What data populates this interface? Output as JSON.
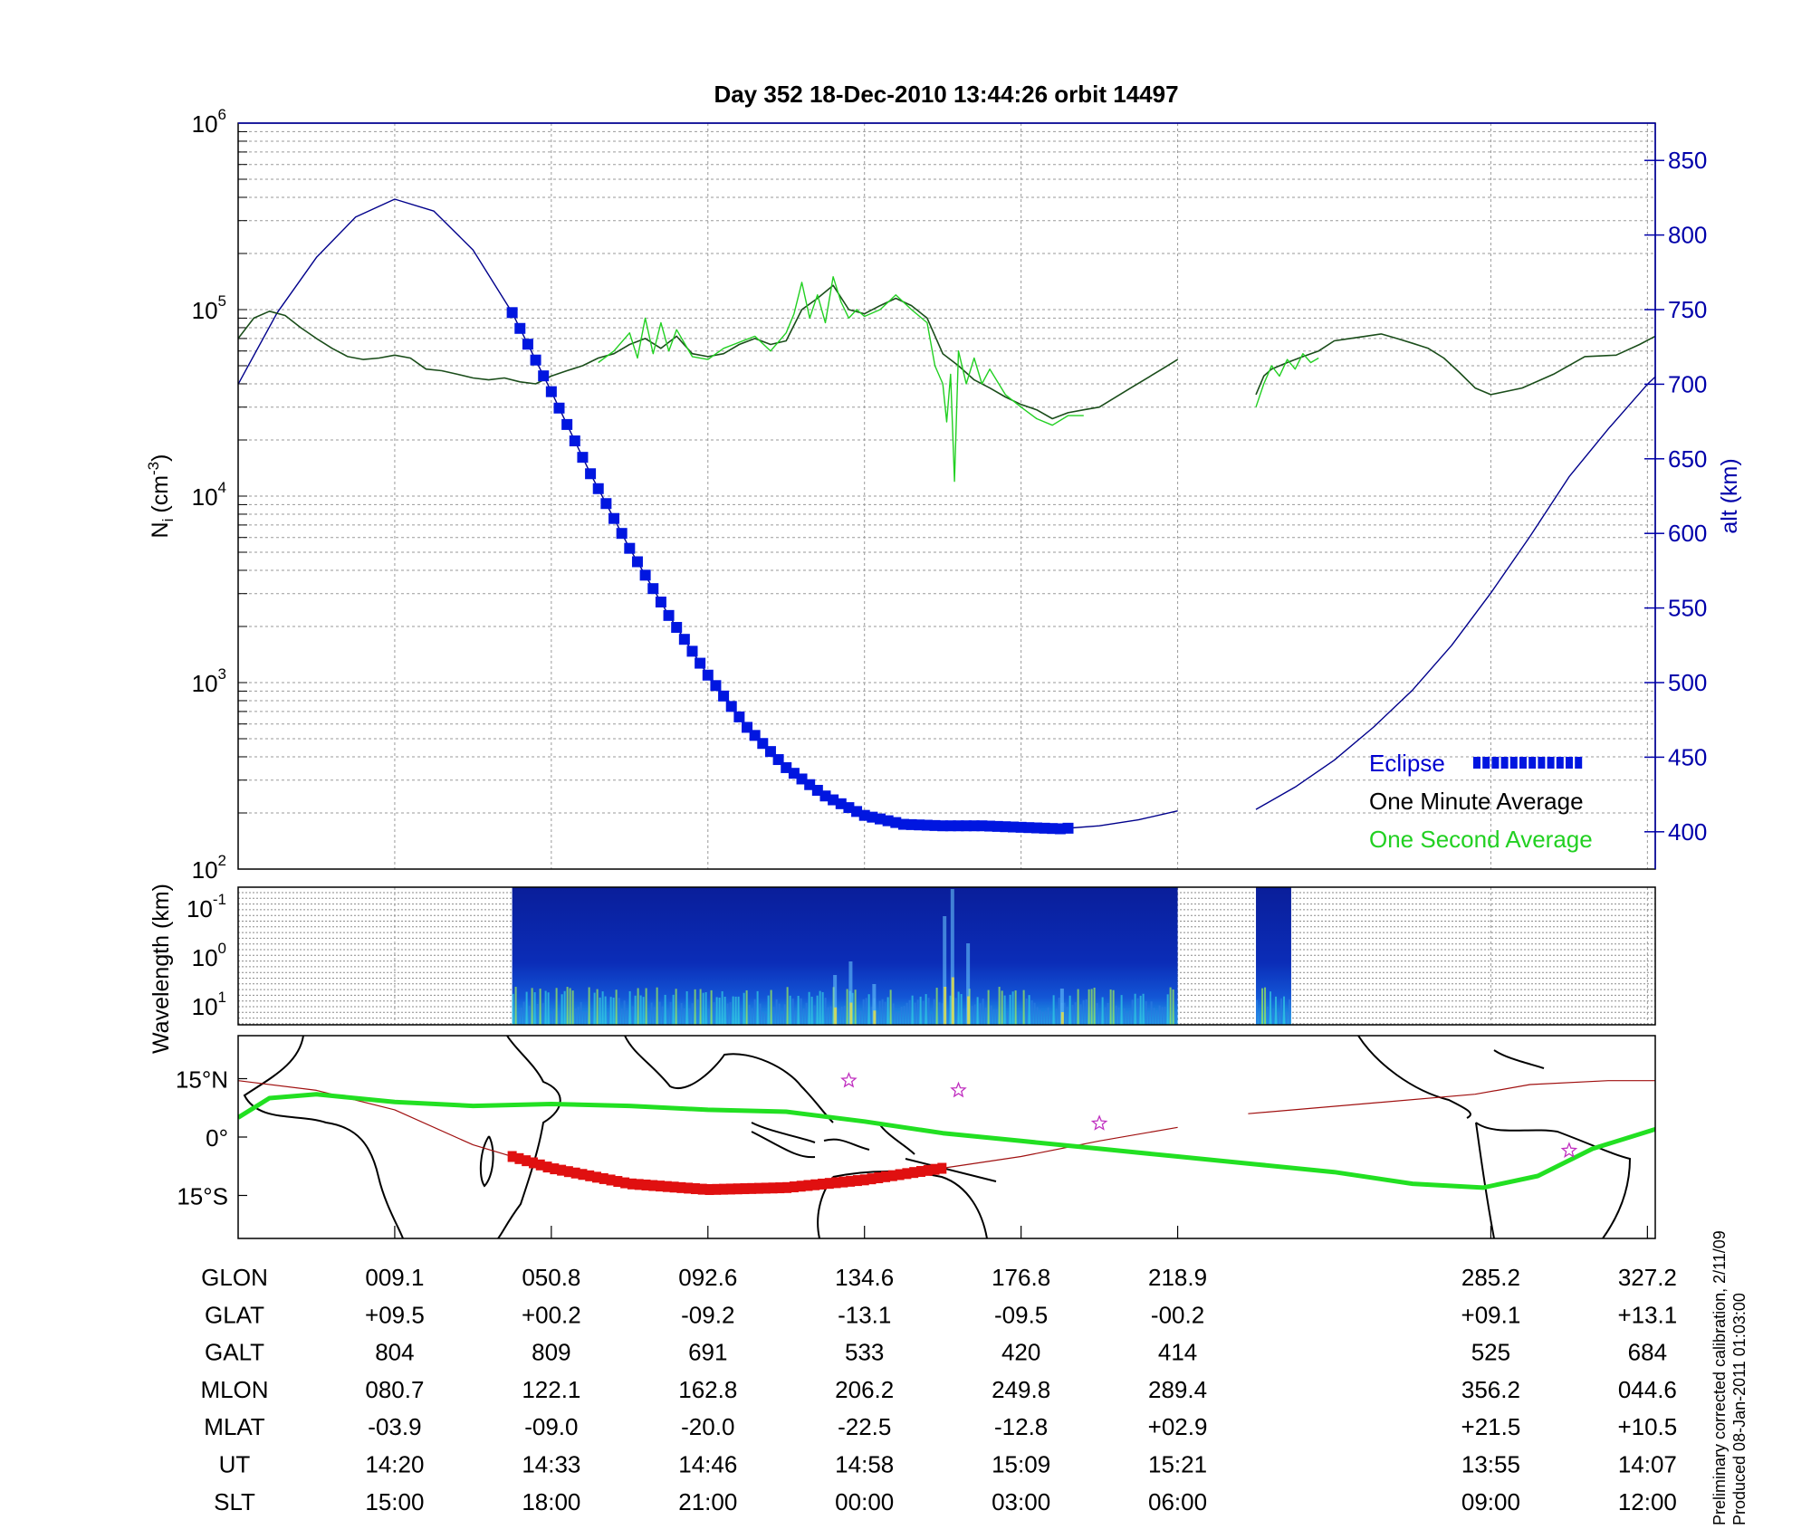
{
  "title": "Day 352  18-Dec-2010 13:44:26   orbit 14497",
  "colors": {
    "eclipse": "#0016e0",
    "minute": "#1a4d1a",
    "second": "#22d022",
    "alt": "#00008b",
    "track": "#22e022",
    "dip": "#a01010",
    "axis": "#0000aa"
  },
  "chart_data": [
    {
      "type": "line",
      "name": "density",
      "ylabel": "N",
      "ylabel_sub": "i",
      "ylabel_unit": "(cm",
      "ylabel_exp": "-3",
      "ylabel_close": ")",
      "y_scale": "log",
      "ylim": [
        100,
        1000000
      ],
      "yticks": [
        {
          "base": "10",
          "exp": "2",
          "v": 100
        },
        {
          "base": "10",
          "exp": "3",
          "v": 1000
        },
        {
          "base": "10",
          "exp": "4",
          "v": 10000
        },
        {
          "base": "10",
          "exp": "5",
          "v": 100000
        },
        {
          "base": "10",
          "exp": "6",
          "v": 1000000
        }
      ],
      "y2label": "alt (km)",
      "y2lim": [
        375,
        875
      ],
      "y2ticks": [
        "400",
        "450",
        "500",
        "550",
        "600",
        "650",
        "700",
        "750",
        "800",
        "850"
      ],
      "legend": {
        "eclipse": "Eclipse",
        "minute": "One Minute Average",
        "second": "One Second Average",
        "position": "bottom-right"
      },
      "minute_segments": [
        [
          [
            0.0,
            70000
          ],
          [
            0.2,
            90000
          ],
          [
            0.4,
            98000
          ],
          [
            0.6,
            93000
          ],
          [
            0.8,
            80000
          ],
          [
            1.0,
            70000
          ],
          [
            1.2,
            62000
          ],
          [
            1.4,
            56000
          ],
          [
            1.6,
            54000
          ],
          [
            1.8,
            55000
          ],
          [
            2.0,
            57000
          ],
          [
            2.2,
            55000
          ],
          [
            2.4,
            48000
          ],
          [
            2.6,
            47000
          ],
          [
            2.8,
            45000
          ],
          [
            3.0,
            43000
          ],
          [
            3.2,
            42000
          ],
          [
            3.4,
            43000
          ],
          [
            3.6,
            41000
          ],
          [
            3.8,
            40000
          ],
          [
            4.0,
            44000
          ],
          [
            4.2,
            47000
          ],
          [
            4.4,
            50000
          ],
          [
            4.6,
            55000
          ],
          [
            4.8,
            58000
          ],
          [
            5.0,
            65000
          ],
          [
            5.2,
            70000
          ],
          [
            5.4,
            62000
          ],
          [
            5.6,
            72000
          ],
          [
            5.8,
            58000
          ],
          [
            6.0,
            56000
          ],
          [
            6.2,
            58000
          ],
          [
            6.4,
            65000
          ],
          [
            6.6,
            70000
          ],
          [
            6.8,
            65000
          ],
          [
            7.0,
            68000
          ],
          [
            7.2,
            100000
          ],
          [
            7.4,
            115000
          ],
          [
            7.6,
            135000
          ],
          [
            7.8,
            100000
          ],
          [
            8.0,
            95000
          ],
          [
            8.2,
            105000
          ],
          [
            8.4,
            115000
          ],
          [
            8.6,
            105000
          ],
          [
            8.8,
            90000
          ],
          [
            9.0,
            58000
          ],
          [
            9.2,
            50000
          ],
          [
            9.4,
            42000
          ],
          [
            9.6,
            38000
          ],
          [
            9.8,
            34000
          ],
          [
            10.0,
            31000
          ],
          [
            10.2,
            29000
          ],
          [
            10.4,
            26000
          ],
          [
            10.6,
            28000
          ],
          [
            10.8,
            29000
          ],
          [
            11.0,
            30000
          ],
          [
            11.4,
            38000
          ],
          [
            11.8,
            48000
          ],
          [
            12.0,
            54000
          ]
        ],
        [
          [
            13.0,
            35000
          ],
          [
            13.1,
            44000
          ],
          [
            13.2,
            48000
          ],
          [
            13.4,
            52000
          ],
          [
            13.6,
            56000
          ],
          [
            13.8,
            60000
          ],
          [
            14.0,
            68000
          ],
          [
            14.2,
            70000
          ],
          [
            14.4,
            72000
          ],
          [
            14.6,
            74000
          ],
          [
            14.8,
            70000
          ],
          [
            15.0,
            66000
          ],
          [
            15.2,
            62000
          ],
          [
            15.4,
            55000
          ],
          [
            15.6,
            46000
          ],
          [
            15.8,
            38000
          ],
          [
            16.0,
            35000
          ],
          [
            16.4,
            38000
          ],
          [
            16.8,
            45000
          ],
          [
            17.2,
            56000
          ],
          [
            17.6,
            57000
          ],
          [
            17.9,
            65000
          ],
          [
            18.1,
            72000
          ]
        ]
      ],
      "second_segments": [
        [
          [
            4.6,
            52000
          ],
          [
            4.8,
            60000
          ],
          [
            5.0,
            75000
          ],
          [
            5.1,
            55000
          ],
          [
            5.2,
            90000
          ],
          [
            5.3,
            58000
          ],
          [
            5.4,
            85000
          ],
          [
            5.5,
            60000
          ],
          [
            5.6,
            78000
          ],
          [
            5.8,
            56000
          ],
          [
            6.0,
            54000
          ],
          [
            6.2,
            62000
          ],
          [
            6.6,
            72000
          ],
          [
            6.8,
            60000
          ],
          [
            7.0,
            75000
          ],
          [
            7.1,
            95000
          ],
          [
            7.2,
            140000
          ],
          [
            7.3,
            90000
          ],
          [
            7.4,
            120000
          ],
          [
            7.5,
            85000
          ],
          [
            7.6,
            150000
          ],
          [
            7.7,
            110000
          ],
          [
            7.8,
            90000
          ],
          [
            7.9,
            100000
          ],
          [
            8.0,
            92000
          ],
          [
            8.2,
            100000
          ],
          [
            8.4,
            120000
          ],
          [
            8.6,
            100000
          ],
          [
            8.8,
            85000
          ],
          [
            8.9,
            50000
          ],
          [
            9.0,
            40000
          ],
          [
            9.05,
            25000
          ],
          [
            9.1,
            45000
          ],
          [
            9.15,
            12000
          ],
          [
            9.2,
            60000
          ],
          [
            9.3,
            40000
          ],
          [
            9.4,
            55000
          ],
          [
            9.5,
            40000
          ],
          [
            9.6,
            48000
          ],
          [
            9.8,
            35000
          ],
          [
            10.0,
            30000
          ],
          [
            10.2,
            26000
          ],
          [
            10.4,
            24000
          ],
          [
            10.6,
            27000
          ],
          [
            10.8,
            27000
          ]
        ],
        [
          [
            13.0,
            30000
          ],
          [
            13.1,
            40000
          ],
          [
            13.2,
            50000
          ],
          [
            13.3,
            44000
          ],
          [
            13.4,
            54000
          ],
          [
            13.5,
            48000
          ],
          [
            13.6,
            58000
          ],
          [
            13.7,
            52000
          ],
          [
            13.8,
            55000
          ]
        ]
      ],
      "altitude_segments": [
        [
          [
            0.0,
            700
          ],
          [
            0.5,
            748
          ],
          [
            1.0,
            785
          ],
          [
            1.5,
            812
          ],
          [
            2.0,
            824
          ],
          [
            2.5,
            816
          ],
          [
            3.0,
            790
          ],
          [
            3.5,
            748
          ],
          [
            4.0,
            695
          ],
          [
            4.5,
            640
          ],
          [
            5.0,
            590
          ],
          [
            5.5,
            545
          ],
          [
            6.0,
            505
          ],
          [
            6.5,
            470
          ],
          [
            7.0,
            443
          ],
          [
            7.5,
            424
          ],
          [
            8.0,
            411
          ],
          [
            8.5,
            405
          ],
          [
            9.0,
            404
          ],
          [
            9.5,
            404
          ],
          [
            10.0,
            403
          ],
          [
            10.5,
            402
          ],
          [
            11.0,
            404
          ],
          [
            11.5,
            408
          ],
          [
            12.0,
            414
          ]
        ],
        [
          [
            13.0,
            415
          ],
          [
            13.5,
            430
          ],
          [
            14.0,
            448
          ],
          [
            14.5,
            470
          ],
          [
            15.0,
            495
          ],
          [
            15.5,
            525
          ],
          [
            16.0,
            560
          ],
          [
            16.5,
            598
          ],
          [
            17.0,
            638
          ],
          [
            17.5,
            670
          ],
          [
            18.0,
            700
          ],
          [
            18.1,
            705
          ]
        ]
      ],
      "eclipse_x": [
        3.5,
        10.6
      ]
    },
    {
      "type": "heatmap",
      "name": "spectrogram",
      "ylabel": "Wavelength (km)",
      "yticks": [
        {
          "base": "10",
          "exp": "-1"
        },
        {
          "base": "10",
          "exp": "0"
        },
        {
          "base": "10",
          "exp": "1"
        }
      ],
      "segments": [
        [
          3.5,
          12.0
        ],
        [
          13.0,
          13.45
        ]
      ]
    },
    {
      "type": "map",
      "name": "ground-track",
      "lat_ticks": [
        "15°N",
        "0°",
        "15°S"
      ],
      "track": [
        [
          0.0,
          5
        ],
        [
          0.4,
          10
        ],
        [
          1.0,
          11
        ],
        [
          2.0,
          9
        ],
        [
          3.0,
          8
        ],
        [
          4.0,
          8.5
        ],
        [
          5.0,
          8
        ],
        [
          6.0,
          7
        ],
        [
          7.0,
          6.5
        ],
        [
          8.0,
          4
        ],
        [
          9.0,
          1
        ],
        [
          10.0,
          -1
        ],
        [
          11.0,
          -3
        ],
        [
          12.0,
          -5
        ],
        [
          13.0,
          -7
        ],
        [
          14.0,
          -9
        ],
        [
          15.0,
          -12
        ],
        [
          15.9,
          -13
        ],
        [
          16.6,
          -10
        ],
        [
          17.3,
          -3
        ],
        [
          18.1,
          2
        ]
      ],
      "dip_equator": [
        [
          0.0,
          14.5
        ],
        [
          1.0,
          12
        ],
        [
          2.0,
          7
        ],
        [
          3.0,
          -2
        ],
        [
          4.0,
          -8
        ],
        [
          5.0,
          -12
        ],
        [
          6.0,
          -13.5
        ],
        [
          7.0,
          -13
        ],
        [
          8.0,
          -11
        ],
        [
          9.0,
          -8
        ],
        [
          10.0,
          -5
        ],
        [
          11.0,
          -1
        ],
        [
          12.0,
          2.5
        ],
        [
          12.9,
          6
        ],
        [
          15.8,
          11
        ],
        [
          16.5,
          13.5
        ],
        [
          17.5,
          14.5
        ],
        [
          18.1,
          14.5
        ]
      ],
      "eclipse_x": [
        3.5,
        9.0
      ],
      "stars": [
        [
          7.8,
          14.5
        ],
        [
          9.2,
          12
        ],
        [
          11.0,
          3.5
        ],
        [
          17.0,
          -3.5
        ]
      ]
    }
  ],
  "table": {
    "row_labels": [
      "GLON",
      "GLAT",
      "GALT",
      "MLON",
      "MLAT",
      "UT",
      "SLT"
    ],
    "columns": [
      [
        "009.1",
        "+09.5",
        "804",
        "080.7",
        "-03.9",
        "14:20",
        "15:00"
      ],
      [
        "050.8",
        "+00.2",
        "809",
        "122.1",
        "-09.0",
        "14:33",
        "18:00"
      ],
      [
        "092.6",
        "-09.2",
        "691",
        "162.8",
        "-20.0",
        "14:46",
        "21:00"
      ],
      [
        "134.6",
        "-13.1",
        "533",
        "206.2",
        "-22.5",
        "14:58",
        "00:00"
      ],
      [
        "176.8",
        "-09.5",
        "420",
        "249.8",
        "-12.8",
        "15:09",
        "03:00"
      ],
      [
        "218.9",
        "-00.2",
        "414",
        "289.4",
        "+02.9",
        "15:21",
        "06:00"
      ],
      [
        "285.2",
        "+09.1",
        "525",
        "356.2",
        "+21.5",
        "13:55",
        "09:00"
      ],
      [
        "327.2",
        "+13.1",
        "684",
        "044.6",
        "+10.5",
        "14:07",
        "12:00"
      ]
    ],
    "column_x": [
      2,
      4,
      6,
      8,
      10,
      12,
      16,
      18
    ]
  },
  "footnote": {
    "line1": "Preliminary corrected calibration, 2/11/09",
    "line2": "Produced 08-Jan-2011 01:03:00"
  }
}
